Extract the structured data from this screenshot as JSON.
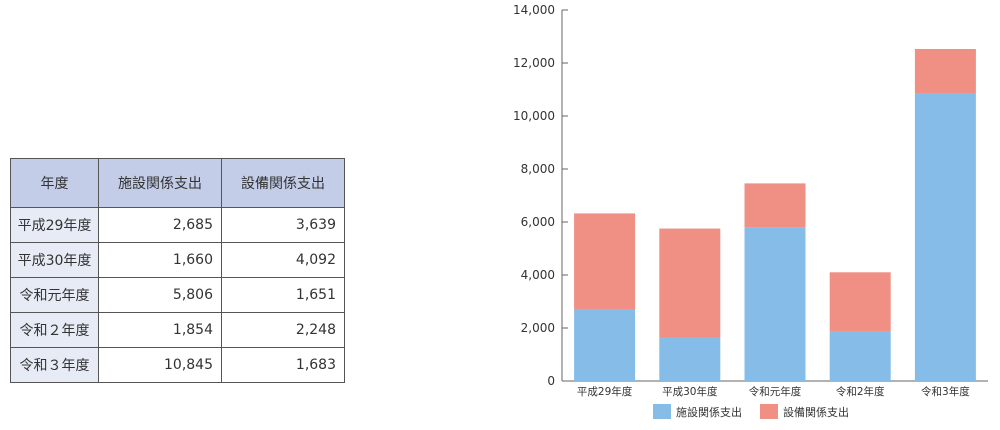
{
  "table": {
    "headers": [
      "年度",
      "施設関係支出",
      "設備関係支出"
    ],
    "rows": [
      {
        "year": "平成29年度",
        "facility": "2,685",
        "equipment": "3,639"
      },
      {
        "year": "平成30年度",
        "facility": "1,660",
        "equipment": "4,092"
      },
      {
        "year": "令和元年度",
        "facility": "5,806",
        "equipment": "1,651"
      },
      {
        "year": "令和２年度",
        "facility": "1,854",
        "equipment": "2,248"
      },
      {
        "year": "令和３年度",
        "facility": "10,845",
        "equipment": "1,683"
      }
    ]
  },
  "chart_data": {
    "type": "bar",
    "stacked": true,
    "categories": [
      "平成29年度",
      "平成30年度",
      "令和元年度",
      "令和2年度",
      "令和3年度"
    ],
    "series": [
      {
        "name": "施設関係支出",
        "values": [
          2685,
          1660,
          5806,
          1854,
          10845
        ],
        "color": "#85bde8"
      },
      {
        "name": "設備関係支出",
        "values": [
          3639,
          4092,
          1651,
          2248,
          1683
        ],
        "color": "#f08f84"
      }
    ],
    "yticks": [
      "0",
      "2,000",
      "4,000",
      "6,000",
      "8,000",
      "10,000",
      "12,000",
      "14,000"
    ],
    "ylim": [
      0,
      14000
    ],
    "legend": "bottom",
    "grid": false,
    "axis_color": "#666666"
  }
}
